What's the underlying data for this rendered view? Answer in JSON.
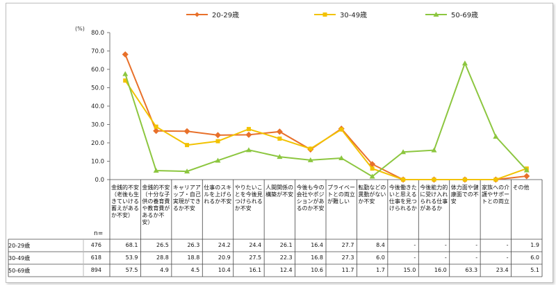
{
  "chart_data": {
    "type": "line",
    "unit_label": "(%)",
    "n_label": "n=",
    "ylim": [
      0,
      80
    ],
    "yticks": [
      "0.0",
      "10.0",
      "20.0",
      "30.0",
      "40.0",
      "50.0",
      "60.0",
      "70.0",
      "80.0"
    ],
    "categories": [
      "金銭的不安（老後も生きていける蓄えがあるか不安）",
      "金銭的不安（十分な子供の養育費や教育費があるか不安）",
      "キャリアアップ・自己実現ができるか不安",
      "仕事のスキルを上げられるか不安",
      "やりたいことを今後見つけられるか不安",
      "人間関係の構築が不安",
      "今後も今の会社やポジションがあるのか不安",
      "プライベートとの両立が難しい",
      "転勤などの異動がないか不安",
      "今後働きたいと思える仕事を見つけられるか",
      "今後能力的に受け入れられる仕事があるか",
      "体力面や健康面での不安",
      "家族への介護やサポートとの両立",
      "その他"
    ],
    "series": [
      {
        "name": "20-29歳",
        "n": "476",
        "color": "#e8702a",
        "values": [
          68.1,
          26.5,
          26.3,
          24.2,
          24.4,
          26.1,
          16.4,
          27.7,
          8.4,
          0,
          0,
          0,
          0,
          1.9
        ],
        "labels": [
          "68.1",
          "26.5",
          "26.3",
          "24.2",
          "24.4",
          "26.1",
          "16.4",
          "27.7",
          "8.4",
          "-",
          "-",
          "-",
          "-",
          "1.9"
        ]
      },
      {
        "name": "30-49歳",
        "n": "618",
        "color": "#f2c200",
        "values": [
          53.9,
          28.8,
          18.8,
          20.9,
          27.5,
          22.3,
          16.8,
          27.3,
          6.0,
          0,
          0,
          0,
          0,
          6.0
        ],
        "labels": [
          "53.9",
          "28.8",
          "18.8",
          "20.9",
          "27.5",
          "22.3",
          "16.8",
          "27.3",
          "6.0",
          "-",
          "-",
          "-",
          "-",
          "6.0"
        ]
      },
      {
        "name": "50-69歳",
        "n": "894",
        "color": "#8cc63f",
        "values": [
          57.5,
          4.9,
          4.5,
          10.4,
          16.1,
          12.4,
          10.6,
          11.7,
          1.7,
          15.0,
          16.0,
          63.3,
          23.4,
          5.1
        ],
        "labels": [
          "57.5",
          "4.9",
          "4.5",
          "10.4",
          "16.1",
          "12.4",
          "10.6",
          "11.7",
          "1.7",
          "15.0",
          "16.0",
          "63.3",
          "23.4",
          "5.1"
        ]
      }
    ],
    "legend_position": "top",
    "grid": false
  }
}
